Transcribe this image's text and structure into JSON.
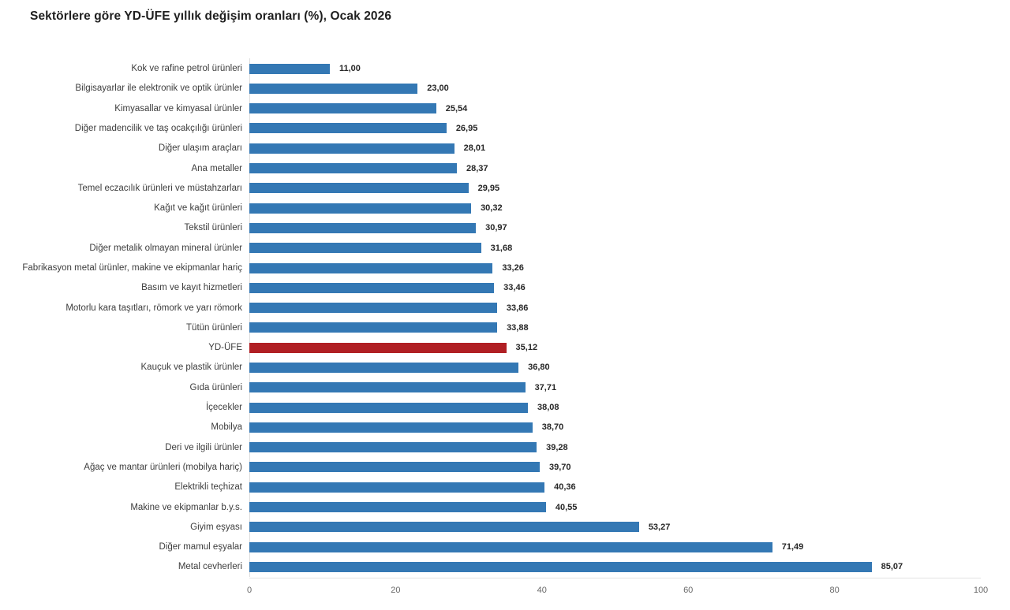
{
  "chart_data": {
    "type": "bar",
    "orientation": "horizontal",
    "title": "Sektörlere göre YD-ÜFE yıllık değişim oranları (%), Ocak 2026",
    "categories": [
      "Kok ve rafine petrol ürünleri",
      "Bilgisayarlar ile elektronik ve optik ürünler",
      "Kimyasallar ve kimyasal ürünler",
      "Diğer madencilik ve taş ocakçılığı ürünleri",
      "Diğer ulaşım araçları",
      "Ana metaller",
      "Temel eczacılık ürünleri ve müstahzarları",
      "Kağıt ve kağıt ürünleri",
      "Tekstil ürünleri",
      "Diğer metalik olmayan mineral ürünler",
      "Fabrikasyon metal ürünler, makine ve ekipmanlar hariç",
      "Basım ve kayıt hizmetleri",
      "Motorlu kara taşıtları, römork ve yarı römork",
      "Tütün ürünleri",
      "YD-ÜFE",
      "Kauçuk ve plastik ürünler",
      "Gıda ürünleri",
      "İçecekler",
      "Mobilya",
      "Deri ve ilgili ürünler",
      "Ağaç ve mantar ürünleri (mobilya hariç)",
      "Elektrikli teçhizat",
      "Makine ve ekipmanlar b.y.s.",
      "Giyim eşyası",
      "Diğer mamul eşyalar",
      "Metal cevherleri"
    ],
    "values": [
      11.0,
      23.0,
      25.54,
      26.95,
      28.01,
      28.37,
      29.95,
      30.32,
      30.97,
      31.68,
      33.26,
      33.46,
      33.86,
      33.88,
      35.12,
      36.8,
      37.71,
      38.08,
      38.7,
      39.28,
      39.7,
      40.36,
      40.55,
      53.27,
      71.49,
      85.07
    ],
    "value_labels": [
      "11,00",
      "23,00",
      "25,54",
      "26,95",
      "28,01",
      "28,37",
      "29,95",
      "30,32",
      "30,97",
      "31,68",
      "33,26",
      "33,46",
      "33,86",
      "33,88",
      "35,12",
      "36,80",
      "37,71",
      "38,08",
      "38,70",
      "39,28",
      "39,70",
      "40,36",
      "40,55",
      "53,27",
      "71,49",
      "85,07"
    ],
    "highlight_category": "YD-ÜFE",
    "colors": {
      "bar": "#3478b4",
      "highlight": "#b01f24"
    },
    "x_axis": {
      "ticks": [
        "0",
        "20",
        "40",
        "60",
        "80",
        "100"
      ],
      "tick_values": [
        0,
        20,
        40,
        60,
        80,
        100
      ],
      "min": 0,
      "max": 100
    },
    "xlabel": "",
    "ylabel": "",
    "grid": false,
    "legend": false
  }
}
